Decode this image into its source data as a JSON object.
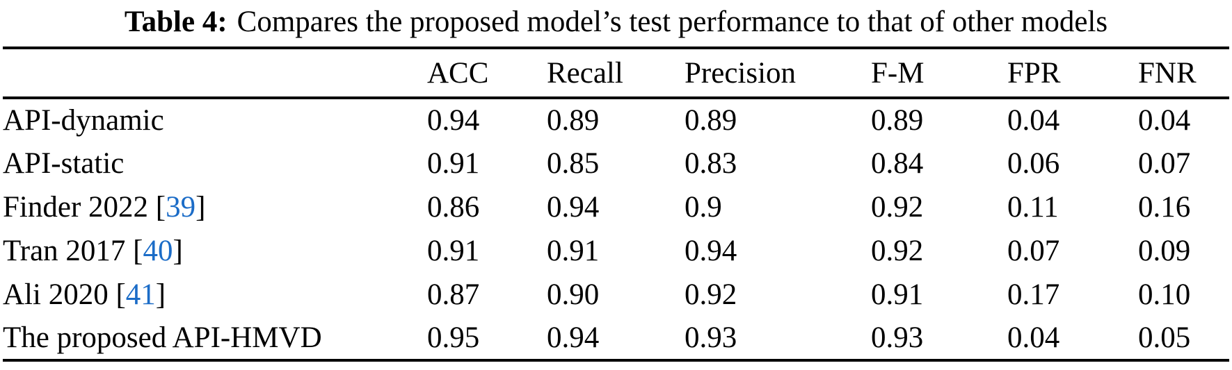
{
  "caption": {
    "label": "Table 4:",
    "text": "Compares the proposed model’s test performance to that of other models"
  },
  "table": {
    "columns": [
      "",
      "ACC",
      "Recall",
      "Precision",
      "F-M",
      "FPR",
      "FNR"
    ],
    "rows": [
      {
        "model": "API-dynamic",
        "citation": null,
        "values": [
          "0.94",
          "0.89",
          "0.89",
          "0.89",
          "0.04",
          "0.04"
        ]
      },
      {
        "model": "API-static",
        "citation": null,
        "values": [
          "0.91",
          "0.85",
          "0.83",
          "0.84",
          "0.06",
          "0.07"
        ]
      },
      {
        "model": "Finder 2022",
        "citation": "39",
        "values": [
          "0.86",
          "0.94",
          "0.9",
          "0.92",
          "0.11",
          "0.16"
        ]
      },
      {
        "model": "Tran 2017",
        "citation": "40",
        "values": [
          "0.91",
          "0.91",
          "0.94",
          "0.92",
          "0.07",
          "0.09"
        ]
      },
      {
        "model": "Ali 2020",
        "citation": "41",
        "values": [
          "0.87",
          "0.90",
          "0.92",
          "0.91",
          "0.17",
          "0.10"
        ]
      },
      {
        "model": "The proposed API-HMVD",
        "citation": null,
        "values": [
          "0.95",
          "0.94",
          "0.93",
          "0.93",
          "0.04",
          "0.05"
        ]
      }
    ]
  },
  "colors": {
    "text": "#000000",
    "background": "#ffffff",
    "citation_link": "#1b6cc7",
    "rule": "#000000"
  },
  "chart_data": {
    "type": "table",
    "title": "Table 4: Compares the proposed model’s test performance to that of other models",
    "columns": [
      "Model",
      "ACC",
      "Recall",
      "Precision",
      "F-M",
      "FPR",
      "FNR"
    ],
    "rows": [
      [
        "API-dynamic",
        0.94,
        0.89,
        0.89,
        0.89,
        0.04,
        0.04
      ],
      [
        "API-static",
        0.91,
        0.85,
        0.83,
        0.84,
        0.06,
        0.07
      ],
      [
        "Finder 2022 [39]",
        0.86,
        0.94,
        0.9,
        0.92,
        0.11,
        0.16
      ],
      [
        "Tran 2017 [40]",
        0.91,
        0.91,
        0.94,
        0.92,
        0.07,
        0.09
      ],
      [
        "Ali 2020 [41]",
        0.87,
        0.9,
        0.92,
        0.91,
        0.17,
        0.1
      ],
      [
        "The proposed API-HMVD",
        0.95,
        0.94,
        0.93,
        0.93,
        0.04,
        0.05
      ]
    ]
  }
}
